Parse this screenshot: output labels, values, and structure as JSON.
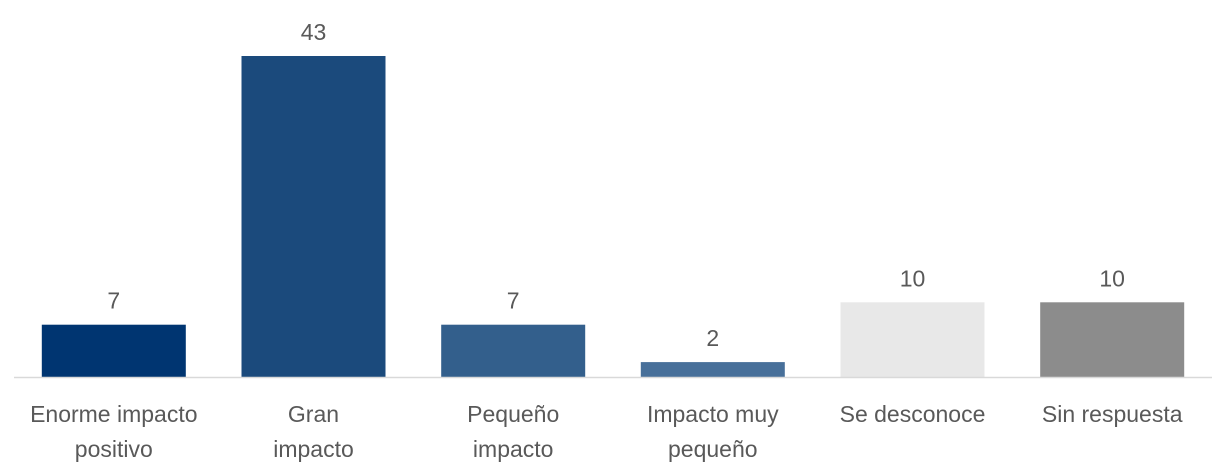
{
  "chart_data": {
    "type": "bar",
    "title": "",
    "xlabel": "",
    "ylabel": "",
    "categories": [
      [
        "Enorme impacto",
        "positivo"
      ],
      [
        "Gran",
        "impacto"
      ],
      [
        "Pequeño",
        "impacto"
      ],
      [
        "Impacto muy",
        "pequeño"
      ],
      [
        "Se desconoce"
      ],
      [
        "Sin respuesta"
      ]
    ],
    "values": [
      7,
      43,
      7,
      2,
      10,
      10
    ],
    "colors": [
      "#003571",
      "#1b4a7c",
      "#335f8c",
      "#48709a",
      "#e8e8e8",
      "#8c8c8c"
    ],
    "ylim": [
      0,
      43
    ],
    "grid": false,
    "legend": "none",
    "axis_line_color": "#d9d9d9"
  }
}
